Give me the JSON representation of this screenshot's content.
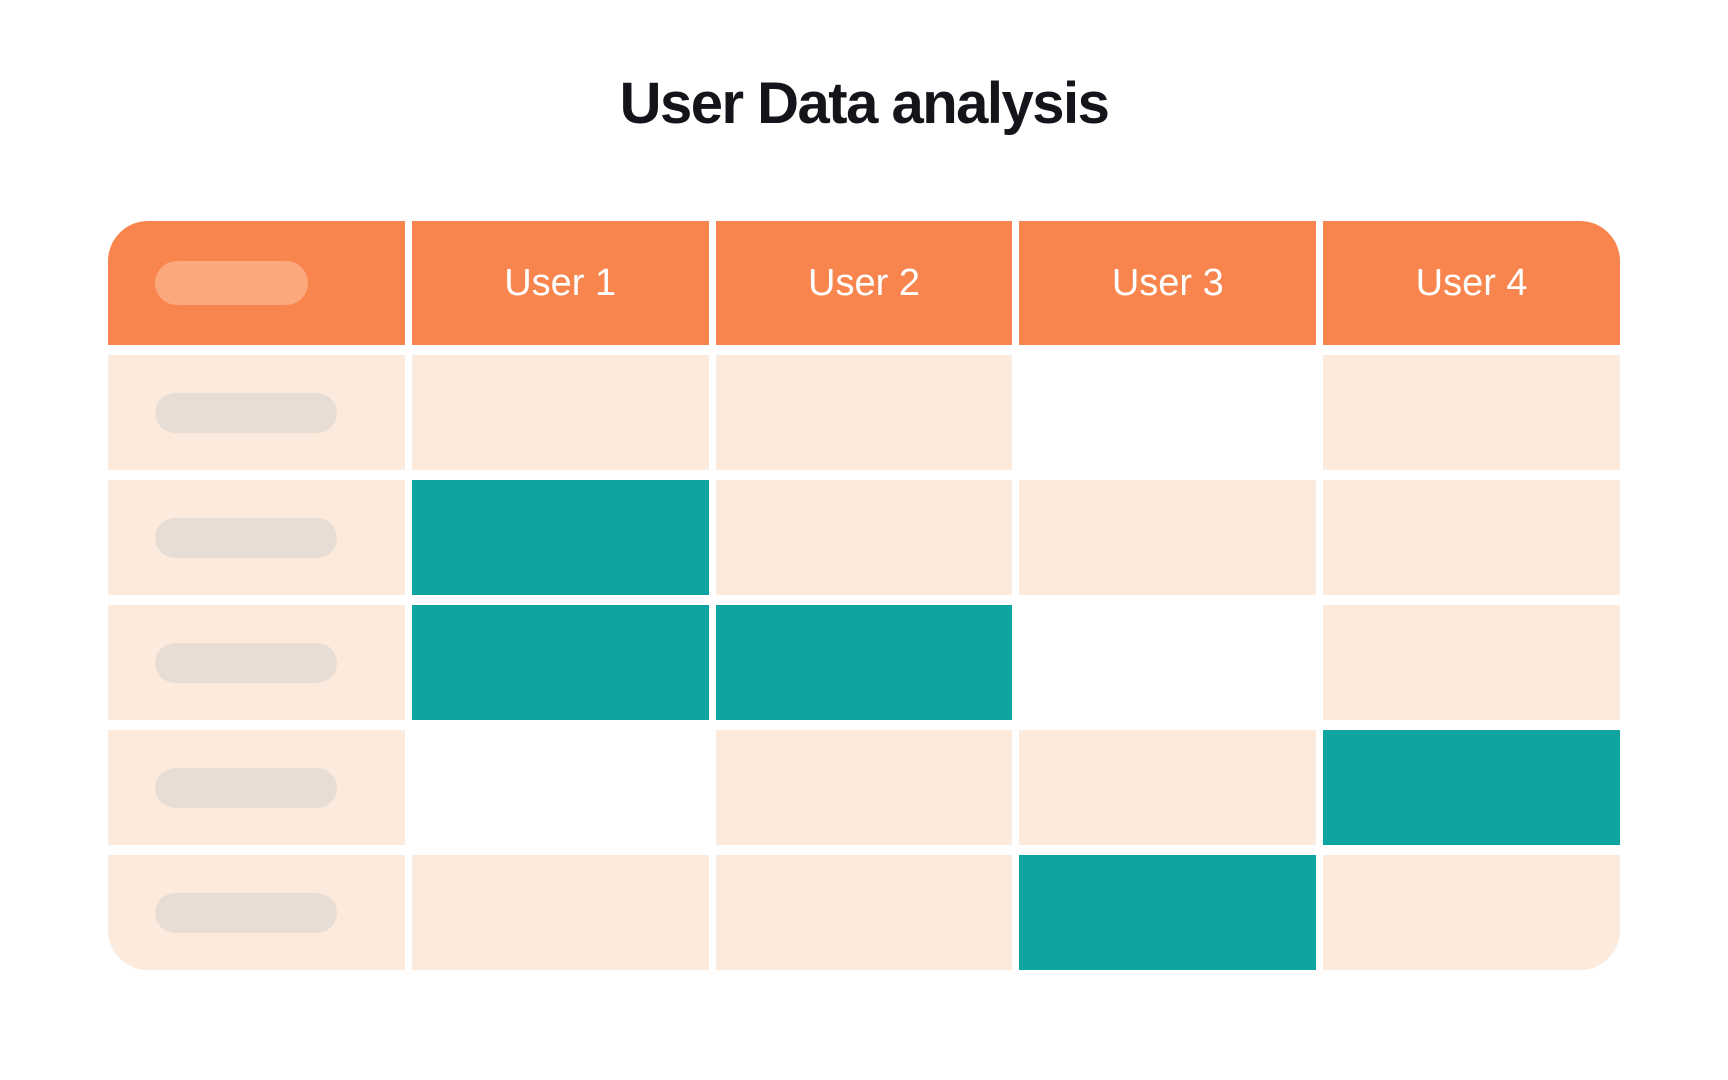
{
  "title": "User Data analysis",
  "table": {
    "columns": [
      "User 1",
      "User 2",
      "User 3",
      "User 4"
    ],
    "header_placeholder": "column-label-skeleton",
    "row_label_placeholder": "row-label-skeleton",
    "rows": [
      {
        "cells": [
          "filled",
          "filled",
          "empty",
          "filled"
        ]
      },
      {
        "cells": [
          "highlight",
          "filled",
          "filled",
          "filled"
        ]
      },
      {
        "cells": [
          "highlight",
          "highlight",
          "empty",
          "filled"
        ]
      },
      {
        "cells": [
          "empty",
          "filled",
          "filled",
          "highlight"
        ]
      },
      {
        "cells": [
          "filled",
          "filled",
          "highlight",
          "filled"
        ]
      }
    ]
  },
  "chart_data": {
    "type": "table",
    "title": "User Data analysis",
    "columns": [
      "",
      "User 1",
      "User 2",
      "User 3",
      "User 4"
    ],
    "cell_states_legend": {
      "filled": "peach cell with data",
      "empty": "blank white cell",
      "highlight": "teal selected cell"
    },
    "rows": [
      {
        "row": 1,
        "User 1": "filled",
        "User 2": "filled",
        "User 3": "empty",
        "User 4": "filled"
      },
      {
        "row": 2,
        "User 1": "highlight",
        "User 2": "filled",
        "User 3": "filled",
        "User 4": "filled"
      },
      {
        "row": 3,
        "User 1": "highlight",
        "User 2": "highlight",
        "User 3": "empty",
        "User 4": "filled"
      },
      {
        "row": 4,
        "User 1": "empty",
        "User 2": "filled",
        "User 3": "filled",
        "User 4": "highlight"
      },
      {
        "row": 5,
        "User 1": "filled",
        "User 2": "filled",
        "User 3": "highlight",
        "User 4": "filled"
      }
    ]
  },
  "colors": {
    "background": "#FFFFFF",
    "title": "#14141B",
    "header_orange": "#F9854E",
    "header_pill_orange": "#FBA87C",
    "cell_peach": "#FCEBDC",
    "row_pill_beige": "#E8DDD4",
    "cell_teal": "#0EA5A0",
    "header_text": "#FFFFFF"
  }
}
